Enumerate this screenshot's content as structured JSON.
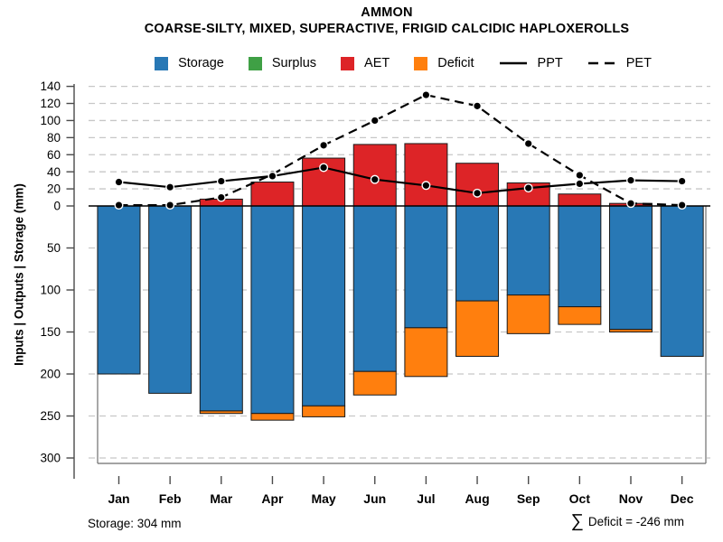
{
  "title": "AMMON",
  "subtitle": "COARSE-SILTY, MIXED, SUPERACTIVE, FRIGID CALCIDIC HAPLOXEROLLS",
  "legend": [
    {
      "label": "Storage",
      "swatch": "square",
      "color": "#2878b5"
    },
    {
      "label": "Surplus",
      "swatch": "square",
      "color": "#3fa045"
    },
    {
      "label": "AET",
      "swatch": "square",
      "color": "#dd2427"
    },
    {
      "label": "Deficit",
      "swatch": "square",
      "color": "#ff7f0e"
    },
    {
      "label": "PPT",
      "swatch": "solid-line",
      "color": "#000000"
    },
    {
      "label": "PET",
      "swatch": "dashed-line",
      "color": "#000000"
    }
  ],
  "footer": {
    "storage": "Storage: 304 mm",
    "sigma": "∑",
    "deficit": "Deficit = -246 mm"
  },
  "chart_data": {
    "type": "bar+line combo, mirrored y-axis (inputs/outputs up, storage down)",
    "categories": [
      "Jan",
      "Feb",
      "Mar",
      "Apr",
      "May",
      "Jun",
      "Jul",
      "Aug",
      "Sep",
      "Oct",
      "Nov",
      "Dec"
    ],
    "bar_series": [
      {
        "name": "Storage",
        "color": "#2878b5",
        "direction": "down",
        "values": [
          200,
          223,
          244,
          247,
          238,
          197,
          145,
          113,
          106,
          120,
          147,
          179
        ]
      },
      {
        "name": "Surplus",
        "color": "#3fa045",
        "direction": "up",
        "values": [
          0,
          0,
          0,
          0,
          0,
          0,
          0,
          0,
          0,
          0,
          0,
          0
        ]
      },
      {
        "name": "AET",
        "color": "#dd2427",
        "direction": "up",
        "values": [
          0,
          0,
          8,
          28,
          56,
          72,
          73,
          50,
          27,
          14,
          3,
          0
        ]
      },
      {
        "name": "Deficit",
        "color": "#ff7f0e",
        "direction": "down",
        "stacked_below": "Storage",
        "values": [
          0,
          0,
          3,
          8,
          13,
          28,
          58,
          66,
          46,
          21,
          3,
          0
        ]
      }
    ],
    "line_series": [
      {
        "name": "PPT",
        "style": "solid",
        "color": "#000000",
        "values": [
          28,
          22,
          29,
          35,
          45,
          31,
          24,
          15,
          21,
          26,
          30,
          29
        ]
      },
      {
        "name": "PET",
        "style": "dashed",
        "color": "#000000",
        "values": [
          1,
          1,
          10,
          37,
          71,
          100,
          130,
          117,
          73,
          36,
          3,
          1
        ]
      }
    ],
    "ylabel": "Inputs | Outputs | Storage  (mm)",
    "upper_ticks": [
      140,
      120,
      100,
      80,
      60,
      40,
      20,
      0
    ],
    "lower_ticks": [
      50,
      100,
      150,
      200,
      250,
      300
    ],
    "upper_range": [
      0,
      145
    ],
    "lower_range": [
      0,
      310
    ],
    "grid": "dashed horizontal",
    "legend_position": "top center"
  }
}
